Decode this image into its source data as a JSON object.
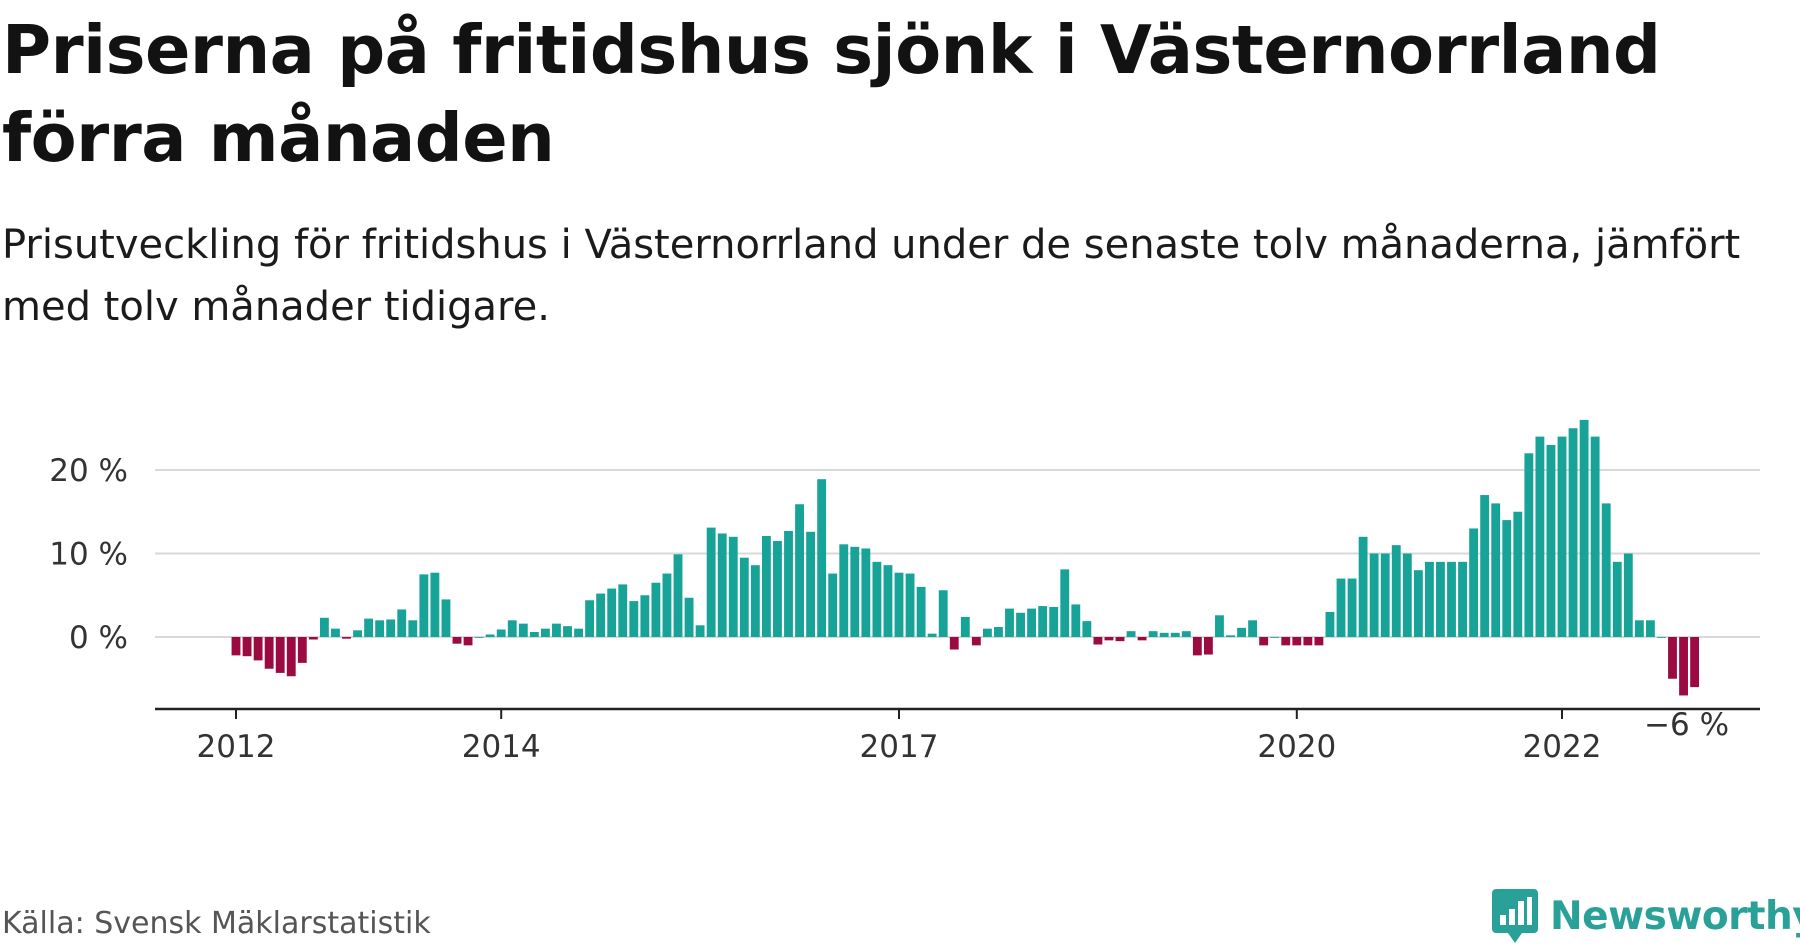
{
  "title": "Priserna på fritidshus sjönk i Västernorrland förra månaden",
  "subtitle": "Prisutveckling för fritidshus i Västernorrland under de senaste tolv månaderna, jämfört med tolv månader tidigare.",
  "source": "Källa: Svensk Mäklarstatistik",
  "logo": {
    "text": "Newsworthy",
    "icon": "newsworthy-logo-icon"
  },
  "colors": {
    "positive": "#17a398",
    "negative": "#9b0b42",
    "grid": "#d9d9d9",
    "axis": "#222222",
    "brand": "#2aa198"
  },
  "chart_data": {
    "type": "bar",
    "title": "",
    "xlabel": "",
    "ylabel": "",
    "ylim": [
      -7,
      26
    ],
    "grid": true,
    "y_ticks": [
      {
        "value": 0,
        "label": "0 %"
      },
      {
        "value": 10,
        "label": "10 %"
      },
      {
        "value": 20,
        "label": "20 %"
      }
    ],
    "x_ticks": [
      {
        "date": "2012-01",
        "label": "2012"
      },
      {
        "date": "2014-01",
        "label": "2014"
      },
      {
        "date": "2017-01",
        "label": "2017"
      },
      {
        "date": "2020-01",
        "label": "2020"
      },
      {
        "date": "2022-01",
        "label": "2022"
      }
    ],
    "start": "2012-01",
    "frequency": "monthly",
    "values": [
      -2.2,
      -2.3,
      -2.8,
      -3.8,
      -4.3,
      -4.7,
      -3.1,
      -0.3,
      2.3,
      1.0,
      -0.2,
      0.8,
      2.2,
      2.0,
      2.1,
      3.3,
      2.0,
      7.5,
      7.7,
      4.5,
      -0.8,
      -1.0,
      0.0,
      0.3,
      0.9,
      2.0,
      1.6,
      0.6,
      1.0,
      1.6,
      1.3,
      1.0,
      4.4,
      5.2,
      5.8,
      6.3,
      4.3,
      5.0,
      6.5,
      7.6,
      9.9,
      4.7,
      1.4,
      13.1,
      12.4,
      12.0,
      9.5,
      8.6,
      12.1,
      11.5,
      12.7,
      15.9,
      12.6,
      18.9,
      7.6,
      11.1,
      10.8,
      10.6,
      9.0,
      8.6,
      7.7,
      7.6,
      6.0,
      0.4,
      5.6,
      -1.5,
      2.4,
      -1.0,
      1.0,
      1.2,
      3.4,
      2.9,
      3.4,
      3.7,
      3.6,
      8.1,
      3.9,
      1.9,
      -0.9,
      -0.4,
      -0.5,
      0.7,
      -0.4,
      0.7,
      0.5,
      0.5,
      0.7,
      -2.2,
      -2.1,
      2.6,
      0.2,
      1.1,
      2.0,
      -1.0,
      0.0,
      -1.0,
      -1.0,
      -1.0,
      -1.0,
      3.0,
      7.0,
      7.0,
      12.0,
      10.0,
      10.0,
      11.0,
      10.0,
      8.0,
      9.0,
      9.0,
      9.0,
      9.0,
      13.0,
      17.0,
      16.0,
      14.0,
      15.0,
      22.0,
      24.0,
      23.0,
      24.0,
      25.0,
      26.0,
      24.0,
      16.0,
      9.0,
      10.0,
      2.0,
      2.0,
      0.0,
      -5.0,
      -7.0,
      -6.0
    ],
    "last_value_label": "−6 %"
  }
}
